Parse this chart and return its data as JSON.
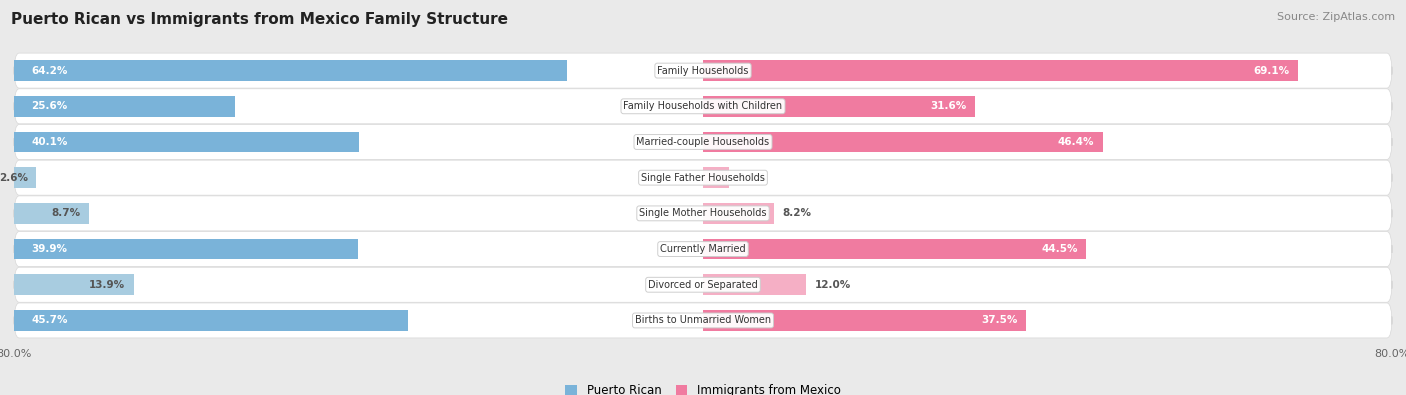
{
  "title": "Puerto Rican vs Immigrants from Mexico Family Structure",
  "source": "Source: ZipAtlas.com",
  "categories": [
    "Family Households",
    "Family Households with Children",
    "Married-couple Households",
    "Single Father Households",
    "Single Mother Households",
    "Currently Married",
    "Divorced or Separated",
    "Births to Unmarried Women"
  ],
  "puerto_rican": [
    64.2,
    25.6,
    40.1,
    2.6,
    8.7,
    39.9,
    13.9,
    45.7
  ],
  "immigrants_mexico": [
    69.1,
    31.6,
    46.4,
    3.0,
    8.2,
    44.5,
    12.0,
    37.5
  ],
  "x_max": 80.0,
  "blue_color": "#7ab3d9",
  "pink_color": "#f07ba0",
  "blue_light": "#a8cce0",
  "pink_light": "#f5afc5",
  "bg_color": "#eaeaea",
  "bar_height": 0.58,
  "legend_blue": "Puerto Rican",
  "legend_pink": "Immigrants from Mexico",
  "title_fontsize": 11,
  "source_fontsize": 8
}
